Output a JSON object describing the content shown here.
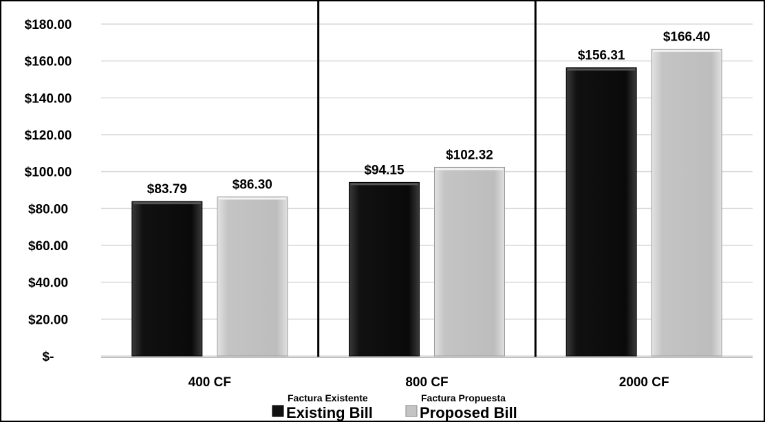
{
  "chart_data": {
    "type": "bar",
    "categories": [
      "400 CF",
      "800 CF",
      "2000 CF"
    ],
    "series": [
      {
        "name": "Existing Bill",
        "name_es": "Factura Existente",
        "color": "#111111",
        "values": [
          83.79,
          94.15,
          156.31
        ],
        "labels": [
          "$83.79",
          "$94.15",
          "$156.31"
        ]
      },
      {
        "name": "Proposed Bill",
        "name_es": "Factura Propuesta",
        "color": "#c4c4c4",
        "values": [
          86.3,
          102.32,
          166.4
        ],
        "labels": [
          "$86.30",
          "$102.32",
          "$166.40"
        ]
      }
    ],
    "ylim": [
      0,
      180
    ],
    "yticks": [
      0,
      20,
      40,
      60,
      80,
      100,
      120,
      140,
      160,
      180
    ],
    "ytick_labels": [
      "$-",
      "$20.00",
      "$40.00",
      "$60.00",
      "$80.00",
      "$100.00",
      "$120.00",
      "$140.00",
      "$160.00",
      "$180.00"
    ],
    "grid": true,
    "legend": "bottom",
    "group_separators": true
  }
}
